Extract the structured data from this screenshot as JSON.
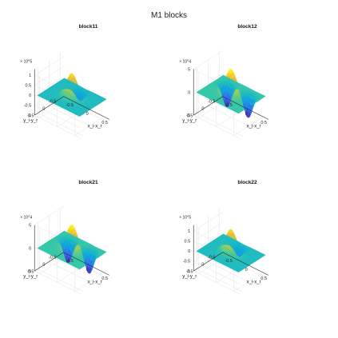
{
  "figure": {
    "title": "M1 blocks"
  },
  "chart_data": [
    {
      "type": "surface",
      "title": "block11",
      "xlabel": "x_i-x_r",
      "ylabel": "y_i-y_r",
      "x_ticks": [
        "-0.5",
        "0",
        "0.5"
      ],
      "y_ticks": [
        "-0.5",
        "0",
        "0.5"
      ],
      "z_exponent": "× 10^5",
      "z_ticks": [
        "-1",
        "-0.5",
        "0",
        "0.5",
        "1"
      ],
      "z_tick_values": [
        -1,
        -0.5,
        0,
        0.5,
        1
      ],
      "zlim": [
        -1,
        1.3
      ],
      "shape": {
        "peak": 1.2,
        "dips": [
          [
            0,
            -0.35,
            -0.45
          ]
        ]
      }
    },
    {
      "type": "surface",
      "title": "block12",
      "xlabel": "x_i-x_r",
      "ylabel": "y_i-y_r",
      "x_ticks": [
        "-0.5",
        "0",
        "0.5"
      ],
      "y_ticks": [
        "-0.5",
        "0",
        "0.5"
      ],
      "z_exponent": "× 10^4",
      "z_ticks": [
        "-5",
        "0",
        "5"
      ],
      "z_tick_values": [
        -5,
        0,
        5
      ],
      "zlim": [
        -5,
        5
      ],
      "shape": {
        "peak": 5.5,
        "dips": [
          [
            -0.3,
            -0.3,
            -5.0
          ],
          [
            0.3,
            -0.3,
            -5.0
          ]
        ]
      }
    },
    {
      "type": "surface",
      "title": "block21",
      "xlabel": "x_i-x_r",
      "ylabel": "y_i-y_r",
      "x_ticks": [
        "-0.5",
        "0",
        "0.5"
      ],
      "y_ticks": [
        "-0.5",
        "0",
        "0.5"
      ],
      "z_exponent": "× 10^4",
      "z_ticks": [
        "-5",
        "0",
        "5"
      ],
      "z_tick_values": [
        -5,
        0,
        5
      ],
      "zlim": [
        -5,
        5
      ],
      "shape": {
        "peak": 5.5,
        "dips": [
          [
            -0.3,
            -0.3,
            -5.0
          ],
          [
            0.3,
            -0.3,
            -5.0
          ]
        ]
      }
    },
    {
      "type": "surface",
      "title": "block22",
      "xlabel": "x_i-x_r",
      "ylabel": "y_i-y_r",
      "x_ticks": [
        "-0.5",
        "0",
        "0.5"
      ],
      "y_ticks": [
        "-0.5",
        "0",
        "0.5"
      ],
      "z_exponent": "× 10^5",
      "z_ticks": [
        "-1",
        "-0.5",
        "0",
        "0.5",
        "1"
      ],
      "z_tick_values": [
        -1,
        -0.5,
        0,
        0.5,
        1
      ],
      "zlim": [
        -1,
        1.3
      ],
      "shape": {
        "peak": 1.2,
        "dips": [
          [
            0,
            -0.35,
            -0.45
          ]
        ]
      }
    }
  ]
}
